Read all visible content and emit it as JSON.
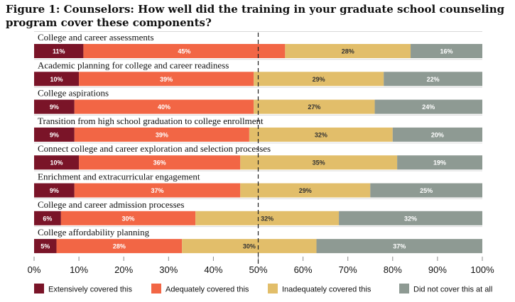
{
  "chart_data": {
    "type": "bar",
    "orientation": "horizontal",
    "stacked": true,
    "title": "Figure 1: Counselors: How well did the training in your graduate school counseling program cover these components?",
    "categories": [
      "College and career assessments",
      "Academic planning for college and career readiness",
      "College aspirations",
      "Transition from high school graduation to college enrollment",
      "Connect college and career exploration and selection processes",
      "Enrichment and extracurricular engagement",
      "College and career admission processes",
      "College affordability planning"
    ],
    "series": [
      {
        "name": "Extensively covered this",
        "color": "#7a1428",
        "values": [
          11,
          10,
          9,
          9,
          10,
          9,
          6,
          5
        ]
      },
      {
        "name": "Adequately covered this",
        "color": "#f26645",
        "values": [
          45,
          39,
          40,
          39,
          36,
          37,
          30,
          28
        ]
      },
      {
        "name": "Inadequately covered this",
        "color": "#e2be6a",
        "values": [
          28,
          29,
          27,
          32,
          35,
          29,
          32,
          30
        ]
      },
      {
        "name": "Did not cover this at all",
        "color": "#8e9a93",
        "values": [
          16,
          22,
          24,
          20,
          19,
          25,
          32,
          37
        ]
      }
    ],
    "xlim": [
      0,
      100
    ],
    "x_ticks": [
      "0%",
      "10%",
      "20%",
      "30%",
      "40%",
      "50%",
      "60%",
      "70%",
      "80%",
      "90%",
      "100%"
    ],
    "reference_line": 50,
    "grid": false,
    "legend_position": "bottom"
  }
}
